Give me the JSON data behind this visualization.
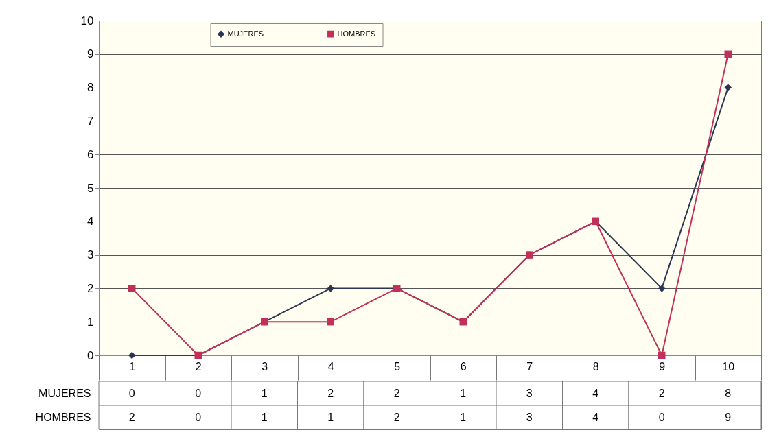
{
  "chart_data": {
    "type": "line",
    "categories": [
      "1",
      "2",
      "3",
      "4",
      "5",
      "6",
      "7",
      "8",
      "9",
      "10"
    ],
    "series": [
      {
        "name": "MUJERES",
        "color": "#2b3554",
        "marker": "diamond",
        "values": [
          0,
          0,
          1,
          2,
          2,
          1,
          3,
          4,
          2,
          8
        ]
      },
      {
        "name": "HOMBRES",
        "color": "#c0305a",
        "marker": "square",
        "values": [
          2,
          0,
          1,
          1,
          2,
          1,
          3,
          4,
          0,
          9
        ]
      }
    ],
    "ylim": [
      0,
      10
    ],
    "yticks": [
      0,
      1,
      2,
      3,
      4,
      5,
      6,
      7,
      8,
      9,
      10
    ],
    "grid": "y",
    "legend": "top",
    "data_labels": true,
    "line_style": "solid"
  }
}
